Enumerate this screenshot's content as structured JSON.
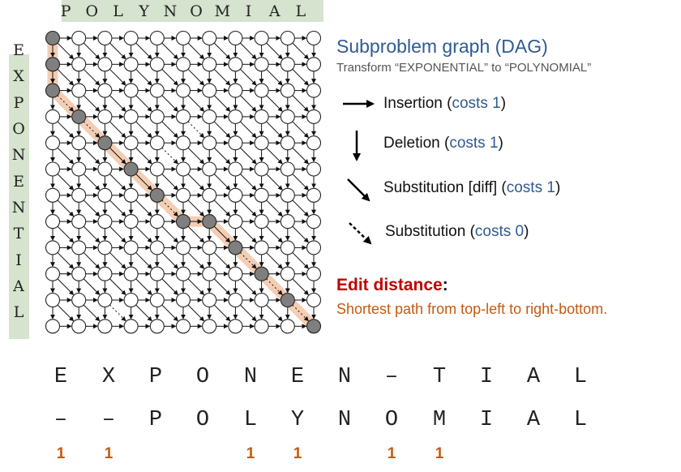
{
  "top_word": [
    "P",
    "O",
    "L",
    "Y",
    "N",
    "O",
    "M",
    "I",
    "A",
    "L"
  ],
  "left_word": [
    "E",
    "X",
    "P",
    "O",
    "N",
    "E",
    "N",
    "T",
    "I",
    "A",
    "L"
  ],
  "panel": {
    "title": "Subproblem graph (DAG)",
    "subtitle": "Transform “EXPONENTIAL” to “POLYNOMIAL”"
  },
  "legend": [
    {
      "label": "Insertion (",
      "cost": "costs 1",
      "close": ")"
    },
    {
      "label": "Deletion (",
      "cost": "costs 1",
      "close": ")"
    },
    {
      "label": "Substitution [diff] (",
      "cost": "costs 1",
      "close": ")"
    },
    {
      "label": "Substitution (",
      "cost": "costs 0",
      "close": ")"
    }
  ],
  "edit_distance": {
    "title": "Edit distance",
    "colon": ":",
    "description": "Shortest path from top-left to right-bottom."
  },
  "alignment": {
    "top": [
      "E",
      "X",
      "P",
      "O",
      "N",
      "E",
      "N",
      "–",
      "T",
      "I",
      "A",
      "L"
    ],
    "bottom": [
      "–",
      "–",
      "P",
      "O",
      "L",
      "Y",
      "N",
      "O",
      "M",
      "I",
      "A",
      "L"
    ],
    "costs": [
      "1",
      "1",
      "",
      "",
      "1",
      "1",
      "",
      "1",
      "1",
      "",
      "",
      ""
    ]
  },
  "colors": {
    "path_highlight": "#f4cdb3",
    "path_node": "#7f7f7f",
    "letter_strip": "#d5e3cf",
    "cost_blue": "#2f5a94",
    "edit_red": "#c00000",
    "desc_orange": "#c55a11"
  },
  "dag": {
    "rows": 12,
    "cols": 11,
    "highlighted_path": [
      [
        0,
        0
      ],
      [
        1,
        0
      ],
      [
        2,
        0
      ],
      [
        3,
        1
      ],
      [
        4,
        2
      ],
      [
        5,
        3
      ],
      [
        6,
        4
      ],
      [
        7,
        5
      ],
      [
        7,
        6
      ],
      [
        8,
        7
      ],
      [
        9,
        8
      ],
      [
        10,
        9
      ],
      [
        11,
        10
      ]
    ]
  }
}
